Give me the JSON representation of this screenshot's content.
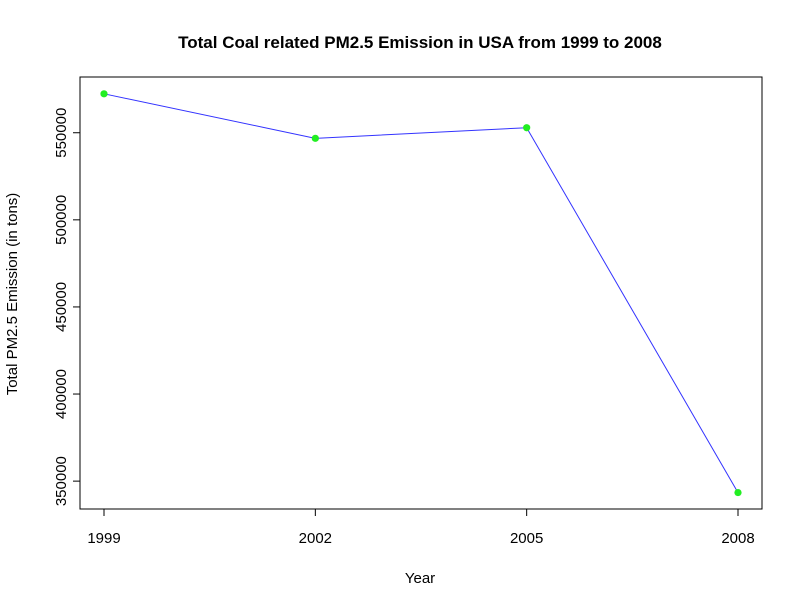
{
  "chart_data": {
    "type": "line",
    "title": "Total Coal related PM2.5 Emission in USA from 1999 to 2008",
    "xlabel": "Year",
    "ylabel": "Total PM2.5 Emission (in tons)",
    "x": [
      "1999",
      "2002",
      "2005",
      "2008"
    ],
    "series": [
      {
        "values": [
          572346,
          546789,
          552881,
          343432
        ]
      }
    ],
    "yticks": [
      "350000",
      "400000",
      "450000",
      "500000",
      "550000"
    ],
    "ylim": [
      334000,
      582000
    ],
    "line_color": "#3333ff",
    "marker_color": "#22ee22"
  }
}
